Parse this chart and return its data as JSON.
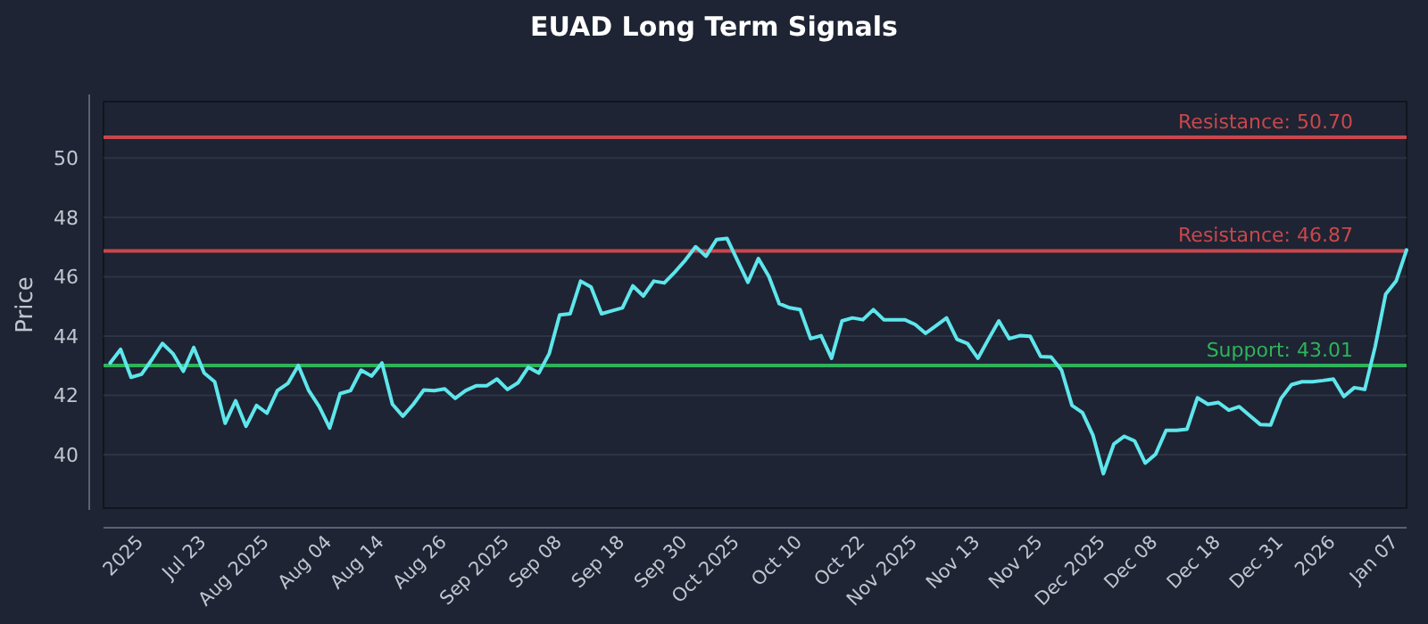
{
  "chart_data": {
    "type": "line",
    "title": "EUAD Long Term Signals",
    "ylabel": "Price",
    "categories": [
      null,
      null,
      null,
      "2025",
      null,
      null,
      null,
      null,
      null,
      "Jul 23",
      null,
      null,
      null,
      null,
      null,
      "Aug 2025",
      null,
      null,
      null,
      null,
      null,
      "Aug 04",
      null,
      null,
      null,
      null,
      "Aug 14",
      null,
      null,
      null,
      null,
      null,
      "Aug 26",
      null,
      null,
      null,
      null,
      null,
      "Sep 2025",
      null,
      null,
      null,
      null,
      "Sep 08",
      null,
      null,
      null,
      null,
      null,
      "Sep 18",
      null,
      null,
      null,
      null,
      null,
      "Sep 30",
      null,
      null,
      null,
      null,
      "Oct 2025",
      null,
      null,
      null,
      null,
      null,
      "Oct 10",
      null,
      null,
      null,
      null,
      null,
      "Oct 22",
      null,
      null,
      null,
      null,
      "Nov 2025",
      null,
      null,
      null,
      null,
      null,
      "Nov 13",
      null,
      null,
      null,
      null,
      null,
      "Nov 25",
      null,
      null,
      null,
      null,
      null,
      "Dec 2025",
      null,
      null,
      null,
      null,
      "Dec 08",
      null,
      null,
      null,
      null,
      null,
      "Dec 18",
      null,
      null,
      null,
      null,
      null,
      "Dec 31",
      null,
      null,
      null,
      null,
      "2026",
      null,
      null,
      null,
      null,
      null,
      "Jan 07",
      null
    ],
    "series": [
      {
        "color": "#5ee6ec",
        "values": [
          43.09,
          43.55,
          42.61,
          42.71,
          43.21,
          43.75,
          43.41,
          42.81,
          43.61,
          42.75,
          42.46,
          41.06,
          41.82,
          40.96,
          41.66,
          41.4,
          42.16,
          42.4,
          43.01,
          42.16,
          41.62,
          40.9,
          42.06,
          42.16,
          42.85,
          42.65,
          43.09,
          41.7,
          41.3,
          41.7,
          42.18,
          42.16,
          42.22,
          41.9,
          42.16,
          42.32,
          42.32,
          42.55,
          42.2,
          42.42,
          42.95,
          42.75,
          43.41,
          44.71,
          44.75,
          45.85,
          45.65,
          44.75,
          44.85,
          44.95,
          45.69,
          45.35,
          45.85,
          45.79,
          46.15,
          46.55,
          47.01,
          46.69,
          47.25,
          47.29,
          46.55,
          45.81,
          46.61,
          46.01,
          45.09,
          44.95,
          44.89,
          43.91,
          44.01,
          43.25,
          44.51,
          44.61,
          44.55,
          44.89,
          44.55,
          44.55,
          44.55,
          44.39,
          44.09,
          44.35,
          44.61,
          43.89,
          43.75,
          43.25,
          43.89,
          44.51,
          43.91,
          44.01,
          43.99,
          43.31,
          43.29,
          42.85,
          41.66,
          41.42,
          40.66,
          39.36,
          40.36,
          40.62,
          40.46,
          39.72,
          40.02,
          40.82,
          40.82,
          40.86,
          41.92,
          41.7,
          41.76,
          41.5,
          41.62,
          41.32,
          41.02,
          41.0,
          41.9,
          42.36,
          42.46,
          42.46,
          42.5,
          42.55,
          41.96,
          42.26,
          42.2,
          43.65,
          45.41,
          45.85,
          46.9
        ]
      }
    ],
    "ylim": [
      38.2,
      51.9
    ],
    "yticks": [
      40,
      42,
      44,
      46,
      48,
      50
    ],
    "grid": "y",
    "ref_lines": [
      {
        "axis": "y",
        "value": 50.7,
        "label": "Resistance: 50.70",
        "color": "#c9474c"
      },
      {
        "axis": "y",
        "value": 46.87,
        "label": "Resistance: 46.87",
        "color": "#c9474c"
      },
      {
        "axis": "y",
        "value": 43.01,
        "label": "Support: 43.01",
        "color": "#2fb35a"
      }
    ]
  }
}
